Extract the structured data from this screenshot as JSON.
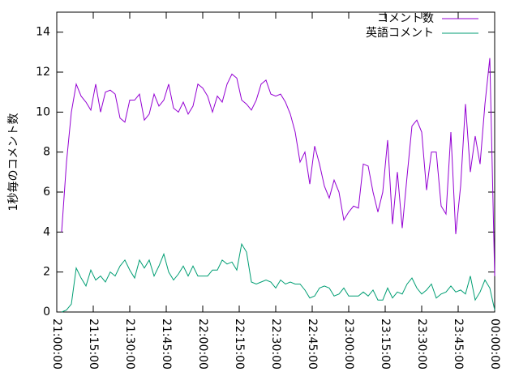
{
  "chart_data": {
    "type": "line",
    "ylabel": "1秒毎のコメント数",
    "x": [
      "21:02:00",
      "21:04:00",
      "21:06:00",
      "21:08:00",
      "21:10:00",
      "21:12:00",
      "21:14:00",
      "21:16:00",
      "21:18:00",
      "21:20:00",
      "21:22:00",
      "21:24:00",
      "21:26:00",
      "21:28:00",
      "21:30:00",
      "21:32:00",
      "21:34:00",
      "21:36:00",
      "21:38:00",
      "21:40:00",
      "21:42:00",
      "21:44:00",
      "21:46:00",
      "21:48:00",
      "21:50:00",
      "21:52:00",
      "21:54:00",
      "21:56:00",
      "21:58:00",
      "22:00:00",
      "22:02:00",
      "22:04:00",
      "22:06:00",
      "22:08:00",
      "22:10:00",
      "22:12:00",
      "22:14:00",
      "22:16:00",
      "22:18:00",
      "22:20:00",
      "22:22:00",
      "22:24:00",
      "22:26:00",
      "22:28:00",
      "22:30:00",
      "22:32:00",
      "22:34:00",
      "22:36:00",
      "22:38:00",
      "22:40:00",
      "22:42:00",
      "22:44:00",
      "22:46:00",
      "22:48:00",
      "22:50:00",
      "22:52:00",
      "22:54:00",
      "22:56:00",
      "22:58:00",
      "23:00:00",
      "23:02:00",
      "23:04:00",
      "23:06:00",
      "23:08:00",
      "23:10:00",
      "23:12:00",
      "23:14:00",
      "23:16:00",
      "23:18:00",
      "23:20:00",
      "23:22:00",
      "23:24:00",
      "23:26:00",
      "23:28:00",
      "23:30:00",
      "23:32:00",
      "23:34:00",
      "23:36:00",
      "23:38:00",
      "23:40:00",
      "23:42:00",
      "23:44:00",
      "23:46:00",
      "23:48:00",
      "23:50:00",
      "23:52:00",
      "23:54:00",
      "23:56:00",
      "23:58:00",
      "00:00:00"
    ],
    "series": [
      {
        "name": "コメント数",
        "color": "#9400d3",
        "values": [
          4,
          7.5,
          10,
          11.4,
          10.8,
          10.5,
          10.1,
          11.4,
          10,
          11,
          11.1,
          10.9,
          9.7,
          9.5,
          10.6,
          10.6,
          10.9,
          9.6,
          9.9,
          10.9,
          10.3,
          10.6,
          11.4,
          10.2,
          10,
          10.5,
          9.9,
          10.3,
          11.4,
          11.2,
          10.8,
          10,
          10.8,
          10.5,
          11.4,
          11.9,
          11.7,
          10.6,
          10.4,
          10.1,
          10.6,
          11.4,
          11.6,
          10.9,
          10.8,
          10.9,
          10.5,
          9.9,
          9,
          7.5,
          8,
          6.4,
          8.3,
          7.4,
          6.3,
          5.7,
          6.6,
          6,
          4.6,
          5,
          5.3,
          5.2,
          7.4,
          7.3,
          6,
          5,
          6,
          8.6,
          4.4,
          7,
          4.2,
          6.8,
          9.3,
          9.6,
          9,
          6.1,
          8,
          8,
          5.3,
          4.9,
          9,
          3.9,
          6.3,
          10.4,
          7,
          8.8,
          7.4,
          10.4,
          12.7,
          1.8
        ]
      },
      {
        "name": "英語コメント",
        "color": "#009e73",
        "values": [
          0,
          0.1,
          0.4,
          2.2,
          1.7,
          1.3,
          2.1,
          1.6,
          1.8,
          1.5,
          2,
          1.8,
          2.3,
          2.6,
          2.1,
          1.7,
          2.6,
          2.2,
          2.6,
          1.8,
          2.3,
          2.9,
          2,
          1.6,
          1.9,
          2.3,
          1.8,
          2.3,
          1.8,
          1.8,
          1.8,
          2.1,
          2.1,
          2.6,
          2.4,
          2.5,
          2.1,
          3.4,
          3,
          1.5,
          1.4,
          1.5,
          1.6,
          1.5,
          1.2,
          1.6,
          1.4,
          1.5,
          1.4,
          1.4,
          1.1,
          0.7,
          0.8,
          1.2,
          1.3,
          1.2,
          0.8,
          0.9,
          1.2,
          0.8,
          0.8,
          0.8,
          1,
          0.8,
          1.1,
          0.6,
          0.6,
          1.2,
          0.7,
          1,
          0.9,
          1.4,
          1.7,
          1.2,
          0.9,
          1.1,
          1.4,
          0.7,
          0.9,
          1,
          1.3,
          1,
          1.1,
          0.9,
          1.8,
          0.6,
          1,
          1.6,
          1.2,
          0.1
        ]
      }
    ],
    "xlim": [
      "21:00:00",
      "00:00:00"
    ],
    "xticks": [
      "21:00:00",
      "21:15:00",
      "21:30:00",
      "21:45:00",
      "22:00:00",
      "22:15:00",
      "22:30:00",
      "22:45:00",
      "23:00:00",
      "23:15:00",
      "23:30:00",
      "23:45:00",
      "00:00:00"
    ],
    "ylim": [
      0,
      15
    ],
    "yticks": [
      0,
      2,
      4,
      6,
      8,
      10,
      12,
      14
    ],
    "legend": "upper right"
  }
}
